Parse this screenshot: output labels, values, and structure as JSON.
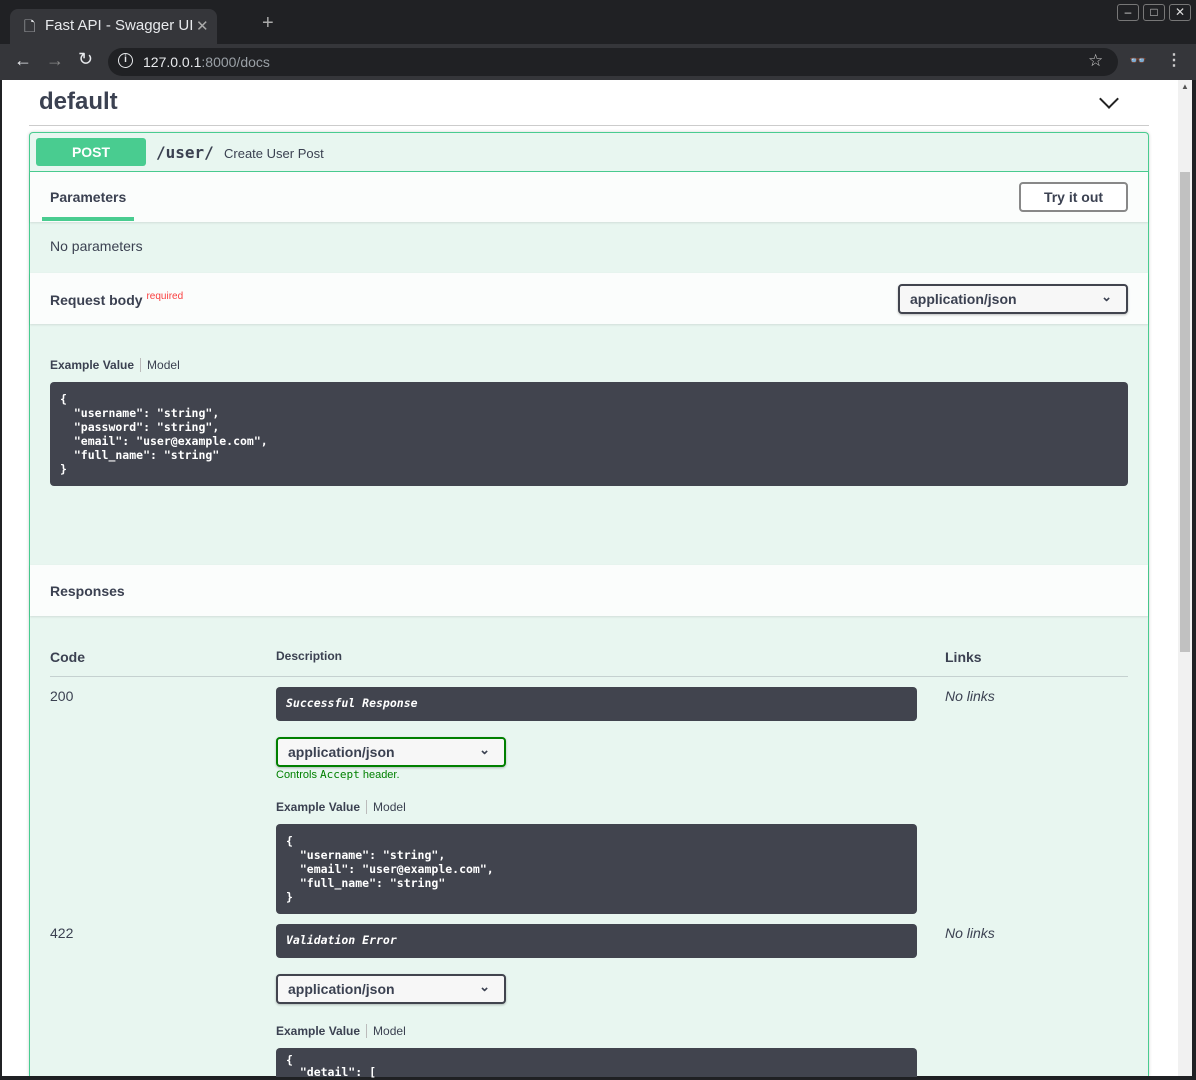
{
  "browser": {
    "tab_title": "Fast API - Swagger UI",
    "url_host": "127.0.0.1",
    "url_rest": ":8000/docs",
    "icons": [
      "file-icon",
      "close-icon",
      "plus-icon",
      "back-icon",
      "forward-icon",
      "reload-icon",
      "info-icon",
      "star-icon",
      "incognito-icon",
      "menu-icon"
    ]
  },
  "section": {
    "title": "default"
  },
  "operation": {
    "method": "POST",
    "path": "/user/",
    "summary": "Create User Post",
    "method_color": "#49cc90"
  },
  "parameters": {
    "tab": "Parameters",
    "try_button": "Try it out",
    "empty": "No parameters"
  },
  "request_body": {
    "label": "Request body",
    "required": "required",
    "content_type": "application/json",
    "example_tab": "Example Value",
    "model_tab": "Model",
    "example": "{\n  \"username\": \"string\",\n  \"password\": \"string\",\n  \"email\": \"user@example.com\",\n  \"full_name\": \"string\"\n}"
  },
  "responses": {
    "title": "Responses",
    "headers": {
      "code": "Code",
      "description": "Description",
      "links": "Links"
    },
    "items": [
      {
        "code": "200",
        "description": "Successful Response",
        "content_type": "application/json",
        "controls_pre": "Controls ",
        "controls_code": "Accept",
        "controls_post": " header.",
        "example_tab": "Example Value",
        "model_tab": "Model",
        "example": "{\n  \"username\": \"string\",\n  \"email\": \"user@example.com\",\n  \"full_name\": \"string\"\n}",
        "links": "No links"
      },
      {
        "code": "422",
        "description": "Validation Error",
        "content_type": "application/json",
        "example_tab": "Example Value",
        "model_tab": "Model",
        "example": "{\n  \"detail\": [",
        "links": "No links"
      }
    ]
  }
}
